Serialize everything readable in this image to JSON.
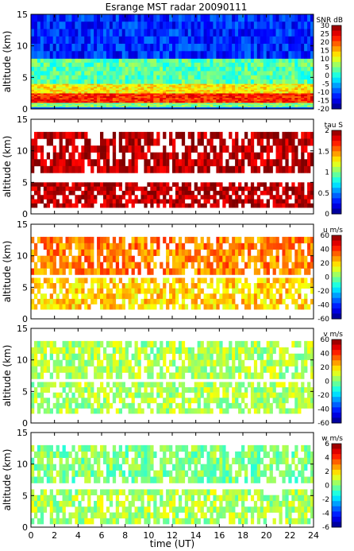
{
  "title": "Esrange MST radar 20090111",
  "xlabel": "time (UT)",
  "chart_data": [
    {
      "type": "heatmap",
      "title": "Esrange MST radar 20090111",
      "ylabel": "altitude (km)",
      "xlabel": "",
      "xlim": [
        0,
        24
      ],
      "ylim": [
        0,
        15
      ],
      "y_ticks": [
        "0",
        "5",
        "10",
        "15"
      ],
      "colorbar": {
        "label": "SNR dB",
        "range": [
          -20,
          30
        ],
        "ticks": [
          "30",
          "25",
          "20",
          "15",
          "10",
          "5",
          "0",
          "-5",
          "-10",
          "-15",
          "-20"
        ]
      },
      "layers": [
        {
          "alt": [
            0.3,
            1.0
          ],
          "value": 5
        },
        {
          "alt": [
            1.0,
            2.5
          ],
          "value": 22
        },
        {
          "alt": [
            2.5,
            4.0
          ],
          "value": 12
        },
        {
          "alt": [
            4.0,
            8.0
          ],
          "value": 3
        },
        {
          "alt": [
            8.0,
            15.0
          ],
          "value": -12
        }
      ]
    },
    {
      "type": "heatmap",
      "ylabel": "altitude (km)",
      "xlim": [
        0,
        24
      ],
      "ylim": [
        0,
        15
      ],
      "y_ticks": [
        "0",
        "5",
        "10",
        "15"
      ],
      "colorbar": {
        "label": "tau S",
        "range": [
          0,
          2
        ],
        "ticks": [
          "2",
          "1.5",
          "1",
          "0.5",
          "0"
        ]
      },
      "layers": [
        {
          "alt": [
            1.0,
            5.0
          ],
          "value": 1.9
        },
        {
          "alt": [
            6.5,
            13.0
          ],
          "value": 1.9
        }
      ]
    },
    {
      "type": "heatmap",
      "ylabel": "altitude (km)",
      "xlim": [
        0,
        24
      ],
      "ylim": [
        0,
        15
      ],
      "y_ticks": [
        "0",
        "5",
        "10",
        "15"
      ],
      "colorbar": {
        "label": "u m/s",
        "range": [
          -60,
          60
        ],
        "ticks": [
          "60",
          "40",
          "20",
          "0",
          "-20",
          "-40",
          "-60"
        ]
      },
      "layers": [
        {
          "alt": [
            1.5,
            6.5
          ],
          "value": 20
        },
        {
          "alt": [
            7.0,
            13.0
          ],
          "value": 30
        }
      ]
    },
    {
      "type": "heatmap",
      "ylabel": "altitude (km)",
      "xlim": [
        0,
        24
      ],
      "ylim": [
        0,
        15
      ],
      "y_ticks": [
        "0",
        "5",
        "10",
        "15"
      ],
      "colorbar": {
        "label": "v m/s",
        "range": [
          -60,
          60
        ],
        "ticks": [
          "60",
          "40",
          "20",
          "0",
          "-20",
          "-40",
          "-60"
        ]
      },
      "layers": [
        {
          "alt": [
            1.5,
            6.5
          ],
          "value": 5
        },
        {
          "alt": [
            7.0,
            13.0
          ],
          "value": 5
        }
      ]
    },
    {
      "type": "heatmap",
      "ylabel": "altitude (km)",
      "xlabel": "time (UT)",
      "xlim": [
        0,
        24
      ],
      "ylim": [
        0,
        15
      ],
      "y_ticks": [
        "0",
        "5",
        "10",
        "15"
      ],
      "x_ticks": [
        "0",
        "2",
        "4",
        "6",
        "8",
        "10",
        "12",
        "14",
        "16",
        "18",
        "20",
        "22",
        "24"
      ],
      "colorbar": {
        "label": "w m/s",
        "range": [
          -6,
          6
        ],
        "ticks": [
          "6",
          "4",
          "2",
          "0",
          "-2",
          "-4",
          "-6"
        ]
      },
      "layers": [
        {
          "alt": [
            0.5,
            6.0
          ],
          "value": 0.5
        },
        {
          "alt": [
            7.0,
            13.0
          ],
          "value": 0
        }
      ]
    }
  ]
}
